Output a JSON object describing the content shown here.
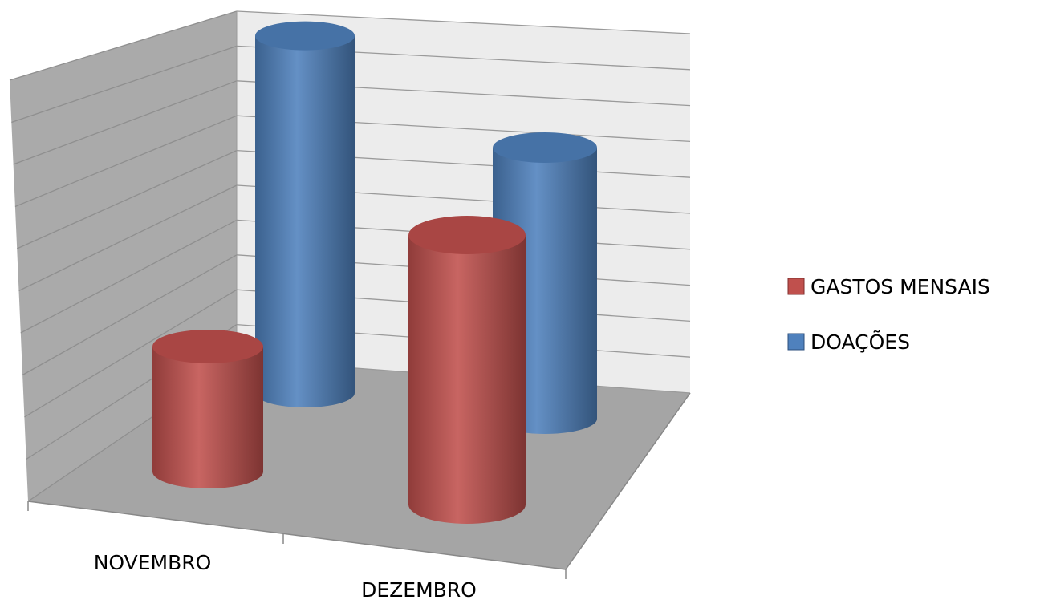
{
  "chart_data": {
    "type": "bar",
    "subtype": "3d-cylinder",
    "title": "",
    "xlabel": "",
    "ylabel": "",
    "categories": [
      "NOVEMBRO",
      "DEZEMBRO"
    ],
    "series": [
      {
        "name": "GASTOS MENSAIS",
        "color": "#c0504d",
        "values": [
          3,
          6
        ]
      },
      {
        "name": "DOAÇÕES",
        "color": "#4f81bd",
        "values": [
          8.5,
          6.5
        ]
      }
    ],
    "ylim": [
      0,
      10
    ],
    "grid": true,
    "legend": "right",
    "value_labels": false
  }
}
